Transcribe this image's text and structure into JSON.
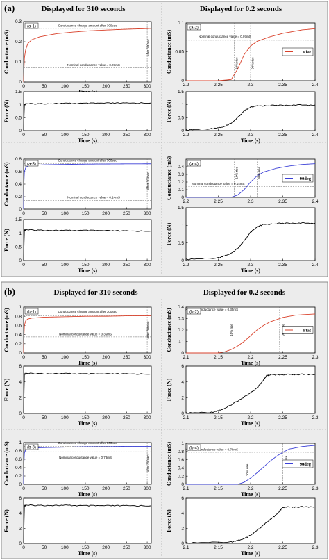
{
  "parts": [
    {
      "label": "(a)",
      "heading_left": "Displayed for 310 seconds",
      "heading_right": "Displayed for 0.2 seconds"
    },
    {
      "label": "(b)",
      "heading_left": "Displayed for 310 seconds",
      "heading_right": "Displayed for 0.2 seconds"
    }
  ],
  "colors": {
    "flat": "#d9412b",
    "deg90": "#3a3fd6",
    "force": "#000000"
  },
  "chart_data": [
    {
      "id": "a-1",
      "type": "line",
      "panel_label": "(a-1)",
      "ylabel": "Conductance (mS)",
      "xlabel": "Time (s)",
      "xlim": [
        0,
        310
      ],
      "ylim": [
        0,
        0.3
      ],
      "xticks": [
        "0",
        "50",
        "100",
        "150",
        "200",
        "250",
        "300"
      ],
      "yticks": [
        "0",
        "0.1",
        "0.2",
        "0.3"
      ],
      "color": "flat",
      "series": [
        {
          "x": [
            0,
            1,
            2,
            5,
            10,
            20,
            40,
            80,
            120,
            160,
            200,
            250,
            300,
            310
          ],
          "y": [
            0,
            0.07,
            0.12,
            0.16,
            0.19,
            0.21,
            0.225,
            0.24,
            0.248,
            0.254,
            0.258,
            0.262,
            0.265,
            0.266
          ]
        }
      ],
      "hlines": [
        0.07,
        0.266
      ],
      "vlines": [
        300
      ],
      "annotations": [
        {
          "text": "Conductance change amount after 300sec",
          "x": 155,
          "y": 0.275
        },
        {
          "text": "Nominal conductance value = 0.07mS",
          "x": 170,
          "y": 0.08
        },
        {
          "text": "After 300sec",
          "x": 304,
          "y": 0.17,
          "rotate": true
        }
      ]
    },
    {
      "id": "a-1f",
      "type": "line",
      "ylabel": "Force (N)",
      "xlabel": "Time (s)",
      "xlim": [
        0,
        310
      ],
      "ylim": [
        0,
        1.5
      ],
      "xticks": [
        "0",
        "50",
        "100",
        "150",
        "200",
        "250",
        "300"
      ],
      "yticks": [
        "0",
        "0.5",
        "1",
        "1.5"
      ],
      "color": "force",
      "series": [
        {
          "x": [
            0,
            2,
            5,
            50,
            100,
            150,
            200,
            250,
            310
          ],
          "y": [
            0,
            1.0,
            1.03,
            1.04,
            1.05,
            1.05,
            1.06,
            1.06,
            1.07
          ]
        }
      ]
    },
    {
      "id": "a-2",
      "type": "line",
      "panel_label": "(a-2)",
      "ylabel": "Conductance (mS)",
      "xlabel": "",
      "xlim": [
        2.2,
        2.4
      ],
      "ylim": [
        0,
        0.1
      ],
      "xticks": [
        "2.2",
        "2.25",
        "2.3",
        "2.35",
        "2.4"
      ],
      "yticks": [
        "0",
        "0.05",
        "0.1"
      ],
      "color": "flat",
      "series": [
        {
          "x": [
            2.2,
            2.25,
            2.27,
            2.28,
            2.29,
            2.3,
            2.31,
            2.33,
            2.35,
            2.38,
            2.4
          ],
          "y": [
            0,
            0,
            0.002,
            0.02,
            0.045,
            0.06,
            0.068,
            0.076,
            0.082,
            0.088,
            0.09
          ]
        }
      ],
      "hlines": [
        0.07
      ],
      "vlines": [
        2.275,
        2.3
      ],
      "legend": {
        "text": "Flat",
        "position": "right"
      },
      "annotations": [
        {
          "text": "Nominal conductance value = 0.07mS",
          "x": 2.26,
          "y": 0.075
        },
        {
          "text": "10% rise",
          "x": 2.28,
          "y": 0.03,
          "rotate": true
        },
        {
          "text": "90% rise",
          "x": 2.305,
          "y": 0.03,
          "rotate": true
        }
      ]
    },
    {
      "id": "a-2f",
      "type": "line",
      "ylabel": "Force (N)",
      "xlabel": "Time (s)",
      "xlim": [
        2.2,
        2.4
      ],
      "ylim": [
        0,
        1.5
      ],
      "xticks": [
        "2.2",
        "2.25",
        "2.3",
        "2.35",
        "2.4"
      ],
      "yticks": [
        "0",
        "0.5",
        "1",
        "1.5"
      ],
      "color": "force",
      "series": [
        {
          "x": [
            2.2,
            2.24,
            2.26,
            2.27,
            2.28,
            2.29,
            2.3,
            2.31,
            2.33,
            2.36,
            2.4
          ],
          "y": [
            0.02,
            0.08,
            0.15,
            0.3,
            0.5,
            0.75,
            0.9,
            0.95,
            0.97,
            0.98,
            0.99
          ]
        }
      ]
    },
    {
      "id": "a-3",
      "type": "line",
      "panel_label": "(a-3)",
      "ylabel": "Conductance (mS)",
      "xlabel": "",
      "xlim": [
        0,
        310
      ],
      "ylim": [
        0,
        0.8
      ],
      "xticks": [
        "0",
        "50",
        "100",
        "150",
        "200",
        "250",
        "300"
      ],
      "yticks": [
        "0",
        "0.2",
        "0.4",
        "0.6",
        "0.8"
      ],
      "color": "deg90",
      "series": [
        {
          "x": [
            0,
            1,
            2,
            5,
            10,
            20,
            50,
            100,
            150,
            200,
            250,
            300,
            310
          ],
          "y": [
            0,
            0.45,
            0.6,
            0.66,
            0.69,
            0.7,
            0.71,
            0.715,
            0.72,
            0.722,
            0.724,
            0.725,
            0.725
          ]
        }
      ],
      "hlines": [
        0.14,
        0.725
      ],
      "vlines": [
        300
      ],
      "annotations": [
        {
          "text": "Conductance change amount after 300sec",
          "x": 155,
          "y": 0.76
        },
        {
          "text": "Nominal conductance value = 0.14mS",
          "x": 170,
          "y": 0.17
        },
        {
          "text": "After 300sec",
          "x": 304,
          "y": 0.45,
          "rotate": true
        }
      ]
    },
    {
      "id": "a-3f",
      "type": "line",
      "ylabel": "Force (N)",
      "xlabel": "Time (s)",
      "xlim": [
        0,
        310
      ],
      "ylim": [
        0,
        1.5
      ],
      "xticks": [
        "0",
        "50",
        "100",
        "150",
        "200",
        "250",
        "300"
      ],
      "yticks": [
        "0",
        "0.5",
        "1",
        "1.5"
      ],
      "color": "force",
      "series": [
        {
          "x": [
            0,
            2,
            5,
            50,
            100,
            150,
            200,
            250,
            310
          ],
          "y": [
            0,
            1.12,
            1.12,
            1.11,
            1.1,
            1.1,
            1.09,
            1.08,
            1.08
          ]
        }
      ]
    },
    {
      "id": "a-4",
      "type": "line",
      "panel_label": "(a-4)",
      "ylabel": "Conductance (mS)",
      "xlabel": "",
      "xlim": [
        2.2,
        2.4
      ],
      "ylim": [
        0,
        0.5
      ],
      "xticks": [
        "2.2",
        "2.25",
        "2.3",
        "2.35",
        "2.4"
      ],
      "yticks": [
        "0",
        "0.1",
        "0.2",
        "0.3",
        "0.4"
      ],
      "color": "deg90",
      "series": [
        {
          "x": [
            2.2,
            2.27,
            2.28,
            2.29,
            2.3,
            2.31,
            2.32,
            2.34,
            2.36,
            2.38,
            2.4
          ],
          "y": [
            0,
            0.002,
            0.03,
            0.1,
            0.2,
            0.28,
            0.33,
            0.38,
            0.41,
            0.43,
            0.44
          ]
        }
      ],
      "hlines": [
        0.14
      ],
      "vlines": [
        2.275,
        2.31
      ],
      "legend": {
        "text": "90deg",
        "position": "right"
      },
      "annotations": [
        {
          "text": "Nominal conductance value = 0.14mS",
          "x": 2.25,
          "y": 0.165
        },
        {
          "text": "10% rise",
          "x": 2.28,
          "y": 0.32,
          "rotate": true
        },
        {
          "text": "90% rise",
          "x": 2.315,
          "y": 0.32,
          "rotate": true
        }
      ]
    },
    {
      "id": "a-4f",
      "type": "line",
      "ylabel": "Force (N)",
      "xlabel": "Time (s)",
      "xlim": [
        2.2,
        2.4
      ],
      "ylim": [
        0,
        1.5
      ],
      "xticks": [
        "2.2",
        "2.25",
        "2.3",
        "2.35",
        "2.4"
      ],
      "yticks": [
        "0",
        "0.5",
        "1",
        "1.5"
      ],
      "color": "force",
      "series": [
        {
          "x": [
            2.2,
            2.25,
            2.27,
            2.28,
            2.29,
            2.3,
            2.31,
            2.32,
            2.34,
            2.37,
            2.4
          ],
          "y": [
            0.03,
            0.08,
            0.2,
            0.35,
            0.55,
            0.8,
            0.95,
            1.02,
            1.05,
            1.06,
            1.06
          ]
        }
      ]
    },
    {
      "id": "b-1",
      "type": "line",
      "panel_label": "(b-1)",
      "ylabel": "Conductance (mS)",
      "xlabel": "Time (s)",
      "xlim": [
        0,
        310
      ],
      "ylim": [
        0,
        1
      ],
      "xticks": [
        "0",
        "50",
        "100",
        "150",
        "200",
        "250",
        "300"
      ],
      "yticks": [
        "0",
        "0.2",
        "0.4",
        "0.6",
        "0.8",
        "1"
      ],
      "color": "flat",
      "series": [
        {
          "x": [
            0,
            1,
            2,
            5,
            10,
            20,
            50,
            100,
            150,
            200,
            250,
            300,
            310
          ],
          "y": [
            0,
            0.4,
            0.6,
            0.7,
            0.74,
            0.76,
            0.78,
            0.79,
            0.8,
            0.8,
            0.81,
            0.81,
            0.81
          ]
        }
      ],
      "hlines": [
        0.35,
        0.81
      ],
      "vlines": [
        300
      ],
      "annotations": [
        {
          "text": "Conductance change amount after 300sec",
          "x": 155,
          "y": 0.88
        },
        {
          "text": "Nominal conductance value = 0.35mS",
          "x": 150,
          "y": 0.39
        },
        {
          "text": "After 300sec",
          "x": 304,
          "y": 0.5,
          "rotate": true
        }
      ]
    },
    {
      "id": "b-1f",
      "type": "line",
      "ylabel": "Force (N)",
      "xlabel": "Time (s)",
      "xlim": [
        0,
        310
      ],
      "ylim": [
        0,
        6
      ],
      "xticks": [
        "0",
        "50",
        "100",
        "150",
        "200",
        "250",
        "300"
      ],
      "yticks": [
        "0",
        "2",
        "4",
        "6"
      ],
      "color": "force",
      "series": [
        {
          "x": [
            0,
            2,
            5,
            50,
            100,
            150,
            200,
            250,
            310
          ],
          "y": [
            0,
            5.0,
            5.05,
            5.05,
            5.05,
            5.0,
            5.0,
            5.0,
            5.0
          ]
        }
      ]
    },
    {
      "id": "b-2",
      "type": "line",
      "panel_label": "(b-2)",
      "ylabel": "Conductance (mS)",
      "xlabel": "Time (s)",
      "xlim": [
        2.1,
        2.3
      ],
      "ylim": [
        0,
        0.4
      ],
      "xticks": [
        "2.1",
        "2.15",
        "2.2",
        "2.25",
        "2.3"
      ],
      "yticks": [
        "0",
        "0.1",
        "0.2",
        "0.3",
        "0.4"
      ],
      "color": "flat",
      "series": [
        {
          "x": [
            2.1,
            2.15,
            2.16,
            2.17,
            2.18,
            2.19,
            2.2,
            2.21,
            2.22,
            2.23,
            2.25,
            2.27,
            2.3
          ],
          "y": [
            0,
            0,
            0.01,
            0.03,
            0.06,
            0.1,
            0.15,
            0.2,
            0.24,
            0.27,
            0.31,
            0.33,
            0.34
          ]
        }
      ],
      "hlines": [
        0.35
      ],
      "vlines": [
        2.165,
        2.245
      ],
      "legend": {
        "text": "Flat",
        "position": "right"
      },
      "annotations": [
        {
          "text": "Nominal conductance value = 0.35mS",
          "x": 2.14,
          "y": 0.37
        },
        {
          "text": "10% rise",
          "x": 2.172,
          "y": 0.2,
          "rotate": true
        },
        {
          "text": "90% rise",
          "x": 2.252,
          "y": 0.2,
          "rotate": true
        }
      ]
    },
    {
      "id": "b-2f",
      "type": "line",
      "ylabel": "Force (N)",
      "xlabel": "Time (s)",
      "xlim": [
        2.1,
        2.3
      ],
      "ylim": [
        0,
        6
      ],
      "xticks": [
        "2.1",
        "2.15",
        "2.2",
        "2.25",
        "2.3"
      ],
      "yticks": [
        "0",
        "2",
        "4",
        "6"
      ],
      "color": "force",
      "series": [
        {
          "x": [
            2.1,
            2.14,
            2.16,
            2.18,
            2.2,
            2.21,
            2.22,
            2.225,
            2.23,
            2.25,
            2.27,
            2.3
          ],
          "y": [
            0.05,
            0.15,
            0.6,
            1.6,
            2.6,
            3.2,
            4.2,
            4.8,
            4.9,
            4.92,
            4.95,
            4.95
          ]
        }
      ]
    },
    {
      "id": "b-3",
      "type": "line",
      "panel_label": "(b-3)",
      "ylabel": "Conductance (mS)",
      "xlabel": "Time (s)",
      "xlim": [
        0,
        310
      ],
      "ylim": [
        0,
        1
      ],
      "xticks": [
        "0",
        "50",
        "100",
        "150",
        "200",
        "250",
        "300"
      ],
      "yticks": [
        "0",
        "0.2",
        "0.4",
        "0.6",
        "0.8",
        "1"
      ],
      "color": "deg90",
      "series": [
        {
          "x": [
            0,
            1,
            2,
            5,
            10,
            20,
            50,
            100,
            150,
            200,
            250,
            300,
            310
          ],
          "y": [
            0,
            0.55,
            0.75,
            0.82,
            0.85,
            0.87,
            0.88,
            0.89,
            0.9,
            0.9,
            0.91,
            0.91,
            0.91
          ]
        }
      ],
      "hlines": [
        0.78,
        0.91
      ],
      "vlines": [
        300
      ],
      "annotations": [
        {
          "text": "Conductance change amount after 300sec",
          "x": 155,
          "y": 0.97
        },
        {
          "text": "Nominal conductance value = 0.78mS",
          "x": 150,
          "y": 0.62
        },
        {
          "text": "After 300sec",
          "x": 304,
          "y": 0.5,
          "rotate": true
        }
      ]
    },
    {
      "id": "b-3f",
      "type": "line",
      "ylabel": "Force (N)",
      "xlabel": "Time (s)",
      "xlim": [
        0,
        310
      ],
      "ylim": [
        0,
        6
      ],
      "xticks": [
        "0",
        "50",
        "100",
        "150",
        "200",
        "250",
        "300"
      ],
      "yticks": [
        "0",
        "2",
        "4",
        "6"
      ],
      "color": "force",
      "series": [
        {
          "x": [
            0,
            2,
            5,
            50,
            100,
            150,
            200,
            250,
            310
          ],
          "y": [
            0,
            5.0,
            5.05,
            5.05,
            5.05,
            5.0,
            5.0,
            5.0,
            5.0
          ]
        }
      ]
    },
    {
      "id": "b-4",
      "type": "line",
      "panel_label": "(b-4)",
      "ylabel": "Conductance (mS)",
      "xlabel": "Time (s)",
      "xlim": [
        2.1,
        2.3
      ],
      "ylim": [
        0,
        1
      ],
      "xticks": [
        "2.1",
        "2.15",
        "2.2",
        "2.25",
        "2.3"
      ],
      "yticks": [
        "0",
        "0.2",
        "0.4",
        "0.6",
        "0.8",
        "1"
      ],
      "color": "deg90",
      "series": [
        {
          "x": [
            2.1,
            2.18,
            2.19,
            2.2,
            2.21,
            2.22,
            2.23,
            2.24,
            2.25,
            2.26,
            2.28,
            2.3
          ],
          "y": [
            0,
            0,
            0.05,
            0.15,
            0.28,
            0.42,
            0.56,
            0.68,
            0.78,
            0.86,
            0.92,
            0.95
          ]
        }
      ],
      "hlines": [
        0.78
      ],
      "vlines": [
        2.19,
        2.25
      ],
      "legend": {
        "text": "90deg",
        "position": "right"
      },
      "annotations": [
        {
          "text": "Nominal conductance value = 0.78mS",
          "x": 2.14,
          "y": 0.82
        },
        {
          "text": "10% rise",
          "x": 2.197,
          "y": 0.35,
          "rotate": true
        },
        {
          "text": "90% rise",
          "x": 2.257,
          "y": 0.55,
          "rotate": true
        }
      ]
    },
    {
      "id": "b-4f",
      "type": "line",
      "ylabel": "Force (N)",
      "xlabel": "Time (s)",
      "xlim": [
        2.1,
        2.3
      ],
      "ylim": [
        0,
        6
      ],
      "xticks": [
        "2.1",
        "2.15",
        "2.2",
        "2.25",
        "2.3"
      ],
      "yticks": [
        "0",
        "2",
        "4",
        "6"
      ],
      "color": "force",
      "series": [
        {
          "x": [
            2.1,
            2.17,
            2.19,
            2.2,
            2.21,
            2.22,
            2.23,
            2.24,
            2.245,
            2.25,
            2.27,
            2.3
          ],
          "y": [
            0.05,
            0.2,
            0.6,
            1.1,
            1.7,
            2.4,
            3.1,
            3.8,
            4.3,
            4.8,
            4.85,
            4.85
          ]
        }
      ]
    }
  ]
}
